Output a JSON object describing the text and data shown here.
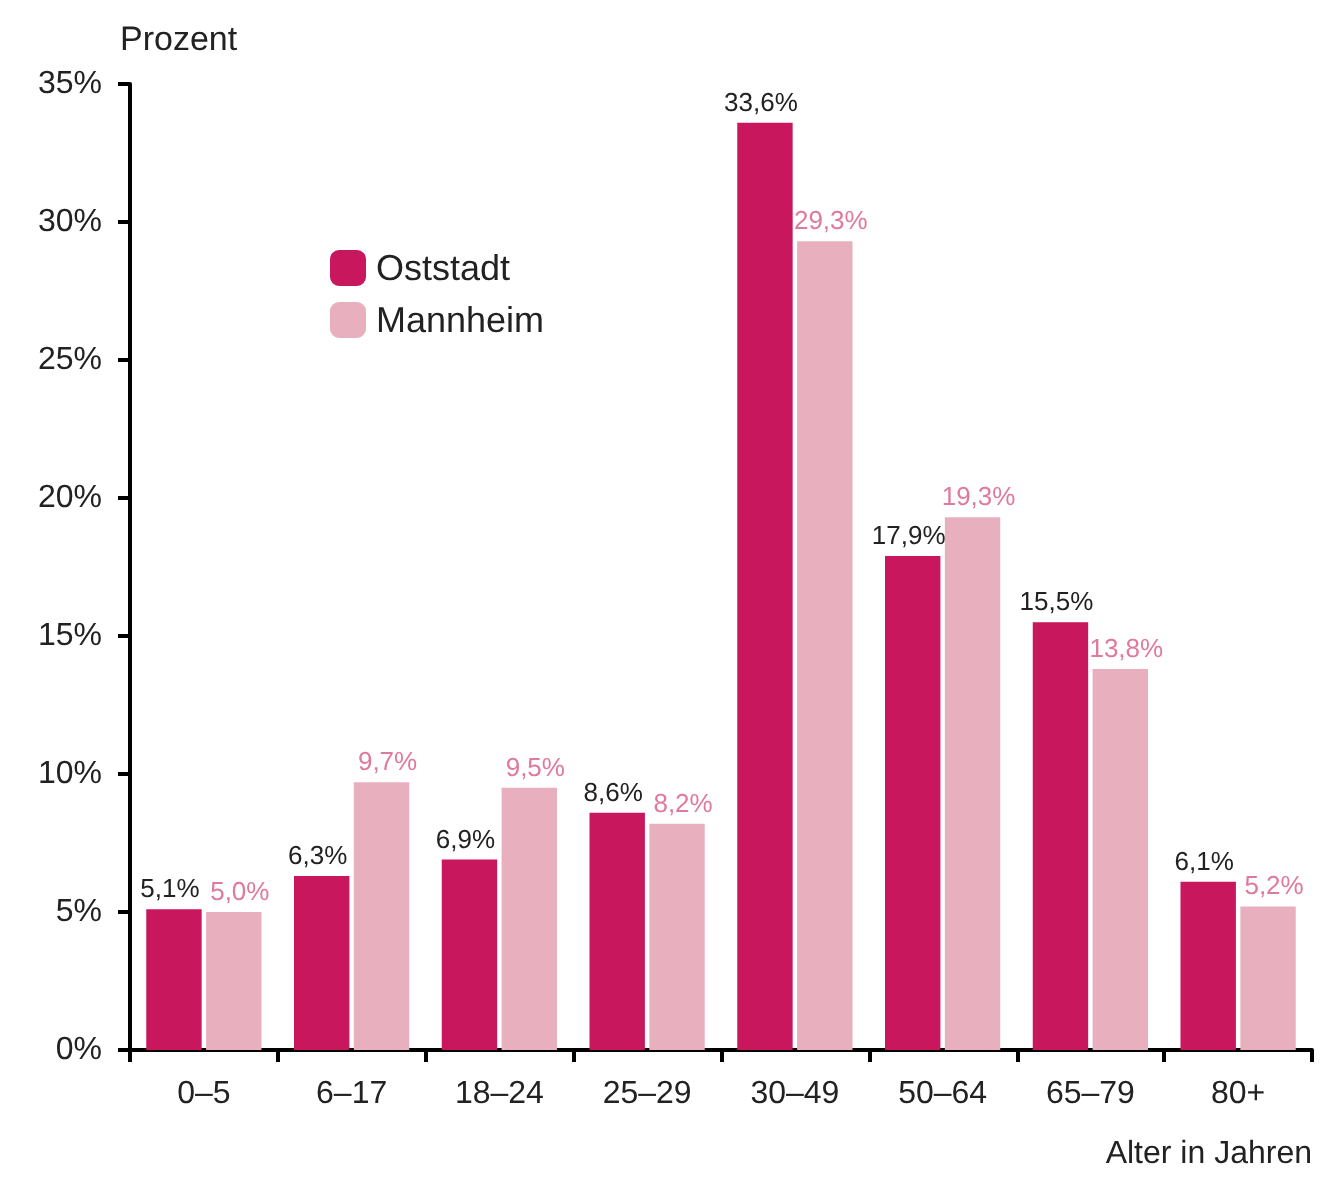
{
  "chart_data": {
    "type": "bar",
    "categories": [
      "0–5",
      "6–17",
      "18–24",
      "25–29",
      "30–49",
      "50–64",
      "65–79",
      "80+"
    ],
    "series": [
      {
        "name": "Oststadt",
        "color": "#c8175d",
        "values": [
          5.1,
          6.3,
          6.9,
          8.6,
          33.6,
          17.9,
          15.5,
          6.1
        ],
        "value_labels": [
          "5,1%",
          "6,3%",
          "6,9%",
          "8,6%",
          "33,6%",
          "17,9%",
          "15,5%",
          "6,1%"
        ]
      },
      {
        "name": "Mannheim",
        "color": "#e8b0be",
        "values": [
          5.0,
          9.7,
          9.5,
          8.2,
          29.3,
          19.3,
          13.8,
          5.2
        ],
        "value_labels": [
          "5,0%",
          "9,7%",
          "9,5%",
          "8,2%",
          "29,3%",
          "19,3%",
          "13,8%",
          "5,2%"
        ]
      }
    ],
    "ylabel": "Prozent",
    "xlabel": "Alter in Jahren",
    "ylim": [
      0,
      35
    ],
    "yticks": [
      {
        "value": 0,
        "label": "0%"
      },
      {
        "value": 5,
        "label": "5%"
      },
      {
        "value": 10,
        "label": "10%"
      },
      {
        "value": 15,
        "label": "15%"
      },
      {
        "value": 20,
        "label": "20%"
      },
      {
        "value": 25,
        "label": "25%"
      },
      {
        "value": 30,
        "label": "30%"
      },
      {
        "value": 35,
        "label": "35%"
      }
    ],
    "grid": false,
    "legend": "top left"
  }
}
